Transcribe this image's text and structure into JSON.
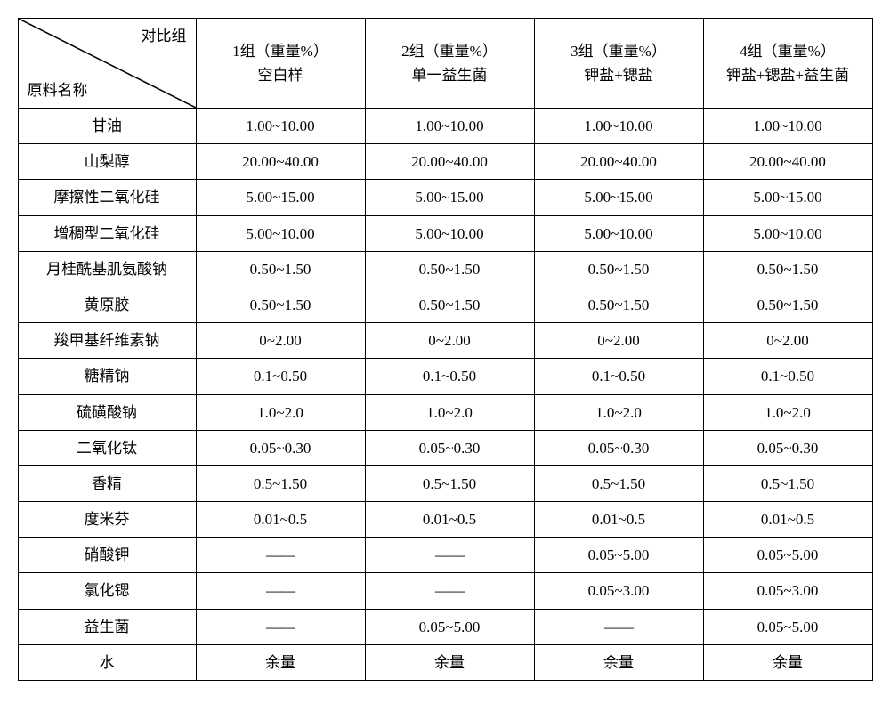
{
  "header": {
    "diag_top": "对比组",
    "diag_bottom": "原料名称",
    "cols": [
      {
        "line1": "1组（重量%）",
        "line2": "空白样"
      },
      {
        "line1": "2组（重量%）",
        "line2": "单一益生菌"
      },
      {
        "line1": "3组（重量%）",
        "line2": "钾盐+锶盐"
      },
      {
        "line1": "4组（重量%）",
        "line2": "钾盐+锶盐+益生菌"
      }
    ]
  },
  "rows": [
    {
      "name": "甘油",
      "v": [
        "1.00~10.00",
        "1.00~10.00",
        "1.00~10.00",
        "1.00~10.00"
      ]
    },
    {
      "name": "山梨醇",
      "v": [
        "20.00~40.00",
        "20.00~40.00",
        "20.00~40.00",
        "20.00~40.00"
      ]
    },
    {
      "name": "摩擦性二氧化硅",
      "v": [
        "5.00~15.00",
        "5.00~15.00",
        "5.00~15.00",
        "5.00~15.00"
      ]
    },
    {
      "name": "增稠型二氧化硅",
      "v": [
        "5.00~10.00",
        "5.00~10.00",
        "5.00~10.00",
        "5.00~10.00"
      ]
    },
    {
      "name": "月桂酰基肌氨酸钠",
      "v": [
        "0.50~1.50",
        "0.50~1.50",
        "0.50~1.50",
        "0.50~1.50"
      ]
    },
    {
      "name": "黄原胶",
      "v": [
        "0.50~1.50",
        "0.50~1.50",
        "0.50~1.50",
        "0.50~1.50"
      ]
    },
    {
      "name": "羧甲基纤维素钠",
      "v": [
        "0~2.00",
        "0~2.00",
        "0~2.00",
        "0~2.00"
      ]
    },
    {
      "name": "糖精钠",
      "v": [
        "0.1~0.50",
        "0.1~0.50",
        "0.1~0.50",
        "0.1~0.50"
      ]
    },
    {
      "name": "硫磺酸钠",
      "v": [
        "1.0~2.0",
        "1.0~2.0",
        "1.0~2.0",
        "1.0~2.0"
      ]
    },
    {
      "name": "二氧化钛",
      "v": [
        "0.05~0.30",
        "0.05~0.30",
        "0.05~0.30",
        "0.05~0.30"
      ]
    },
    {
      "name": "香精",
      "v": [
        "0.5~1.50",
        "0.5~1.50",
        "0.5~1.50",
        "0.5~1.50"
      ]
    },
    {
      "name": "度米芬",
      "v": [
        "0.01~0.5",
        "0.01~0.5",
        "0.01~0.5",
        "0.01~0.5"
      ]
    },
    {
      "name": "硝酸钾",
      "v": [
        "——",
        "——",
        "0.05~5.00",
        "0.05~5.00"
      ]
    },
    {
      "name": "氯化锶",
      "v": [
        "——",
        "——",
        "0.05~3.00",
        "0.05~3.00"
      ]
    },
    {
      "name": "益生菌",
      "v": [
        "——",
        "0.05~5.00",
        "——",
        "0.05~5.00"
      ]
    },
    {
      "name": "水",
      "v": [
        "余量",
        "余量",
        "余量",
        "余量"
      ]
    }
  ],
  "style": {
    "border_color": "#000000",
    "bg_color": "#ffffff",
    "font_size": 17,
    "dash_text": "——"
  }
}
